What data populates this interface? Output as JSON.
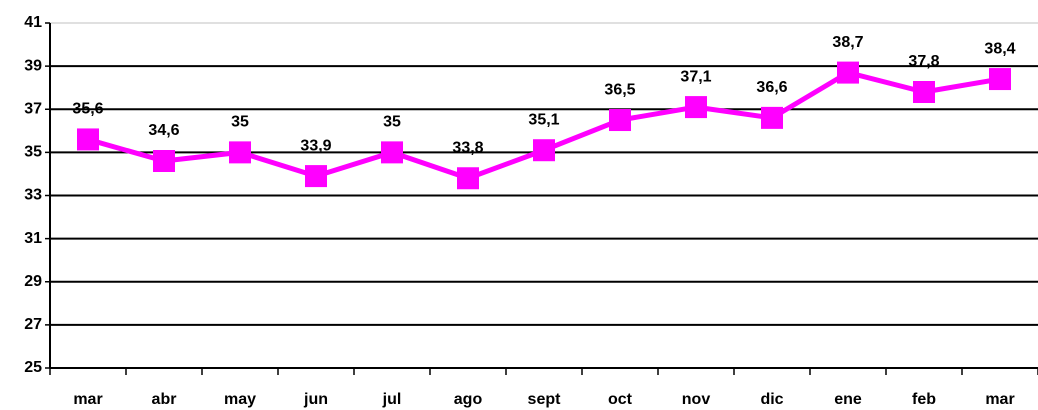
{
  "chart_data": {
    "type": "line",
    "categories": [
      "mar",
      "abr",
      "may",
      "jun",
      "jul",
      "ago",
      "sept",
      "oct",
      "nov",
      "dic",
      "ene",
      "feb",
      "mar"
    ],
    "series": [
      {
        "color": "#ff00ff",
        "values": [
          35.6,
          34.6,
          35,
          33.9,
          35,
          33.8,
          35.1,
          36.5,
          37.1,
          36.6,
          38.7,
          37.8,
          38.4
        ],
        "value_labels": [
          "35,6",
          "34,6",
          "35",
          "33,9",
          "35",
          "33,8",
          "35,1",
          "36,5",
          "37,1",
          "36,6",
          "38,7",
          "37,8",
          "38,4"
        ]
      }
    ],
    "ylim": [
      25,
      41
    ],
    "yticks": [
      25,
      27,
      29,
      31,
      33,
      35,
      37,
      39,
      41
    ],
    "grid": true
  }
}
